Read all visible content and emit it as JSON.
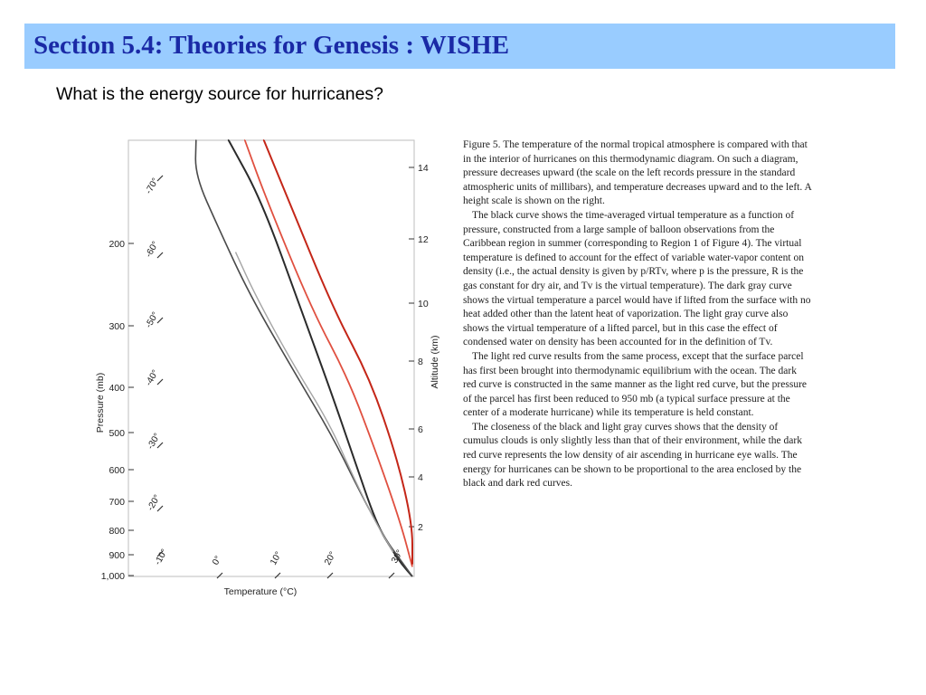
{
  "slide": {
    "title": "Section 5.4: Theories for Genesis : WISHE",
    "question": "What is the energy source for hurricanes?"
  },
  "colors": {
    "title_bar": "#99ccff",
    "title_text": "#1a2aa6",
    "black_curve": "#2b2b2b",
    "dark_gray_curve": "#4a4a4a",
    "light_gray_curve": "#a5a5a5",
    "light_red_curve": "#e05040",
    "dark_red_curve": "#c42618"
  },
  "figure": {
    "pressure_axis_label": "Pressure (mb)",
    "altitude_axis_label": "Altitude (km)",
    "temperature_axis_label": "Temperature (°C)",
    "pressure_ticks": [
      "200",
      "300",
      "400",
      "500",
      "600",
      "700",
      "800",
      "900",
      "1,000"
    ],
    "altitude_ticks": [
      "14",
      "12",
      "10",
      "8",
      "6",
      "4",
      "2"
    ],
    "isotherm_labels": [
      "-70°",
      "-60°",
      "-50°",
      "-40°",
      "-30°",
      "-20°",
      "-10°",
      "0°",
      "10°",
      "20°",
      "30°"
    ]
  },
  "chart_data": {
    "type": "line",
    "x_unit": "°C",
    "y_unit": "mb",
    "ylim": [
      1000,
      155
    ],
    "series": [
      {
        "name": "black curve",
        "points": [
          [
            29,
            1000
          ],
          [
            24,
            950
          ],
          [
            20,
            900
          ],
          [
            12,
            800
          ],
          [
            -1,
            600
          ],
          [
            -14,
            450
          ],
          [
            -30,
            320
          ],
          [
            -52,
            200
          ],
          [
            -68,
            155
          ]
        ]
      },
      {
        "name": "dark gray curve",
        "points": [
          [
            29,
            1000
          ],
          [
            23,
            930
          ],
          [
            16,
            850
          ],
          [
            4,
            700
          ],
          [
            -10,
            550
          ],
          [
            -28,
            420
          ],
          [
            -50,
            300
          ],
          [
            -66,
            225
          ],
          [
            -78,
            180
          ],
          [
            -80,
            155
          ]
        ]
      },
      {
        "name": "light gray curve",
        "points": [
          [
            20,
            900
          ],
          [
            12,
            800
          ],
          [
            0,
            650
          ],
          [
            -12,
            520
          ],
          [
            -30,
            400
          ],
          [
            -48,
            300
          ],
          [
            -58,
            250
          ]
        ]
      },
      {
        "name": "light red curve",
        "points": [
          [
            30,
            960
          ],
          [
            21,
            800
          ],
          [
            8,
            600
          ],
          [
            -8,
            430
          ],
          [
            -26,
            320
          ],
          [
            -50,
            200
          ],
          [
            -62,
            155
          ]
        ]
      },
      {
        "name": "dark red curve",
        "points": [
          [
            34,
            950
          ],
          [
            27,
            800
          ],
          [
            15,
            600
          ],
          [
            0,
            430
          ],
          [
            -18,
            320
          ],
          [
            -42,
            200
          ],
          [
            -55,
            155
          ]
        ]
      }
    ]
  },
  "caption": {
    "p1": "Figure 5. The temperature of the normal tropical atmosphere is compared with that in the interior of hurricanes on this thermodynamic diagram. On such a diagram, pressure decreases upward (the scale on the left records pressure in the standard atmospheric units of millibars), and temperature decreases upward and to the left. A height scale is shown on the right.",
    "p2": "The black curve shows the time-averaged virtual temperature as a function of pressure, constructed from a large sample of balloon observations from the Caribbean region in summer (corresponding to Region 1 of Figure 4). The virtual temperature is defined to account for the effect of variable water-vapor content on density (i.e., the actual density is given by p/RTv, where p is the pressure, R is the gas constant for dry air, and Tv is the virtual temperature). The dark gray curve shows the virtual temperature a parcel would have if lifted from the surface with no heat added other than the latent heat of vaporization. The light gray curve also shows the virtual temperature of a lifted parcel, but in this case the effect of condensed water on density has been accounted for in the definition of Tv.",
    "p3": "The light red curve results from the same process, except that the surface parcel has first been brought into thermodynamic equilibrium with the ocean. The dark red curve is constructed in the same manner as the light red curve, but the pressure of the parcel has first been reduced to 950 mb (a typical surface pressure at the center of a moderate hurricane) while its temperature is held constant.",
    "p4": "The closeness of the black and light gray curves shows that the density of cumulus clouds is only slightly less than that of their environment, while the dark red curve represents the low density of air ascending in hurricane eye walls. The energy for hurricanes can be shown to be proportional to the area enclosed by the black and dark red curves."
  }
}
